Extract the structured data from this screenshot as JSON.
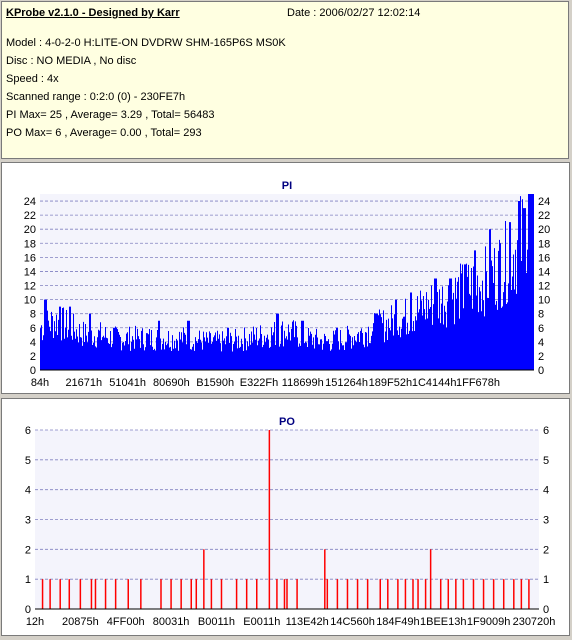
{
  "header": {
    "title": "KProbe v2.1.0 - Designed by Karr",
    "date": "Date : 2006/02/27 12:02:14",
    "lines": [
      "Model : 4-0-2-0 H:LITE-ON DVDRW SHM-165P6S MS0K",
      "Disc : NO MEDIA , No disc",
      "Speed : 4x",
      "Scanned range : 0:2:0 (0) - 230FE7h",
      "PI Max= 25 , Average= 3.29 , Total= 56483",
      "PO Max= 6 , Average= 0.00 , Total= 293"
    ]
  },
  "colors": {
    "pi_fill": "#0000ff",
    "po_bar": "#ff0000",
    "grid": "#8080c0",
    "title": "#000080"
  },
  "chart_data": [
    {
      "type": "bar",
      "title": "PI",
      "ylim": [
        0,
        25
      ],
      "yticks": [
        0,
        2,
        4,
        6,
        8,
        10,
        12,
        14,
        16,
        18,
        20,
        22,
        24
      ],
      "xtick_labels": [
        "84h",
        "21671h",
        "51041h",
        "80690h",
        "B1590h",
        "E322Fh",
        "118699h",
        "151264h",
        "189F52h",
        "1C4144h",
        "1FF678h"
      ],
      "envelope": [
        [
          0,
          6
        ],
        [
          3,
          7
        ],
        [
          6,
          6
        ],
        [
          9,
          5
        ],
        [
          12,
          5
        ],
        [
          15,
          4.5
        ],
        [
          18,
          4.5
        ],
        [
          22,
          4.5
        ],
        [
          26,
          4.5
        ],
        [
          30,
          4.5
        ],
        [
          34,
          4
        ],
        [
          38,
          4
        ],
        [
          42,
          4.5
        ],
        [
          46,
          5
        ],
        [
          50,
          5.5
        ],
        [
          54,
          4.5
        ],
        [
          58,
          4
        ],
        [
          62,
          4.5
        ],
        [
          66,
          5.5
        ],
        [
          70,
          6.5
        ],
        [
          74,
          7.5
        ],
        [
          78,
          9
        ],
        [
          82,
          10
        ],
        [
          85,
          11
        ],
        [
          88,
          12
        ],
        [
          91,
          13
        ],
        [
          94,
          15
        ],
        [
          96,
          17
        ],
        [
          98,
          19
        ],
        [
          100,
          22
        ]
      ],
      "spikes": [
        [
          1,
          10
        ],
        [
          4,
          9
        ],
        [
          6,
          9
        ],
        [
          10,
          8
        ],
        [
          15,
          6
        ],
        [
          24,
          7
        ],
        [
          30,
          7
        ],
        [
          38,
          6
        ],
        [
          48,
          8
        ],
        [
          53,
          7
        ],
        [
          60,
          6
        ],
        [
          68,
          8
        ],
        [
          72,
          10
        ],
        [
          75,
          11
        ],
        [
          80,
          13
        ],
        [
          83,
          13
        ],
        [
          86,
          15
        ],
        [
          88,
          17
        ],
        [
          91,
          20
        ],
        [
          93,
          18
        ],
        [
          95,
          21
        ],
        [
          97,
          24
        ],
        [
          98,
          23
        ],
        [
          99,
          25
        ]
      ]
    },
    {
      "type": "bar",
      "title": "PO",
      "ylim": [
        0,
        6
      ],
      "yticks": [
        0,
        1,
        2,
        3,
        4,
        5,
        6
      ],
      "xtick_labels": [
        "12h",
        "20875h",
        "4FF00h",
        "80031h",
        "B0011h",
        "E0011h",
        "113E42h",
        "14C560h",
        "184F49h",
        "1BEE13h",
        "1F9009h",
        "230720h"
      ],
      "bars": [
        [
          1.5,
          1
        ],
        [
          3,
          1
        ],
        [
          5,
          1
        ],
        [
          6.8,
          1
        ],
        [
          9,
          1
        ],
        [
          11.2,
          1
        ],
        [
          12,
          1
        ],
        [
          14,
          1
        ],
        [
          16,
          1
        ],
        [
          18.5,
          1
        ],
        [
          21,
          1
        ],
        [
          25,
          1
        ],
        [
          27,
          1
        ],
        [
          29,
          1
        ],
        [
          31,
          1
        ],
        [
          32,
          1
        ],
        [
          33.5,
          2
        ],
        [
          35,
          1
        ],
        [
          37,
          1
        ],
        [
          40,
          1
        ],
        [
          42,
          1
        ],
        [
          44,
          1
        ],
        [
          46.5,
          6
        ],
        [
          48,
          1
        ],
        [
          49.5,
          1
        ],
        [
          50,
          1
        ],
        [
          52,
          1
        ],
        [
          57.5,
          2
        ],
        [
          58,
          1
        ],
        [
          60,
          1
        ],
        [
          62,
          1
        ],
        [
          64,
          1
        ],
        [
          66,
          1
        ],
        [
          68.5,
          1
        ],
        [
          70,
          1
        ],
        [
          72,
          1
        ],
        [
          73.5,
          1
        ],
        [
          75,
          1
        ],
        [
          76,
          1
        ],
        [
          77.5,
          1
        ],
        [
          78.5,
          2
        ],
        [
          80.5,
          1
        ],
        [
          82,
          1
        ],
        [
          83.5,
          1
        ],
        [
          85,
          1
        ],
        [
          87,
          1
        ],
        [
          89,
          1
        ],
        [
          91,
          1
        ],
        [
          93,
          1
        ],
        [
          95,
          1
        ],
        [
          96.5,
          1
        ],
        [
          98,
          1
        ]
      ]
    }
  ]
}
